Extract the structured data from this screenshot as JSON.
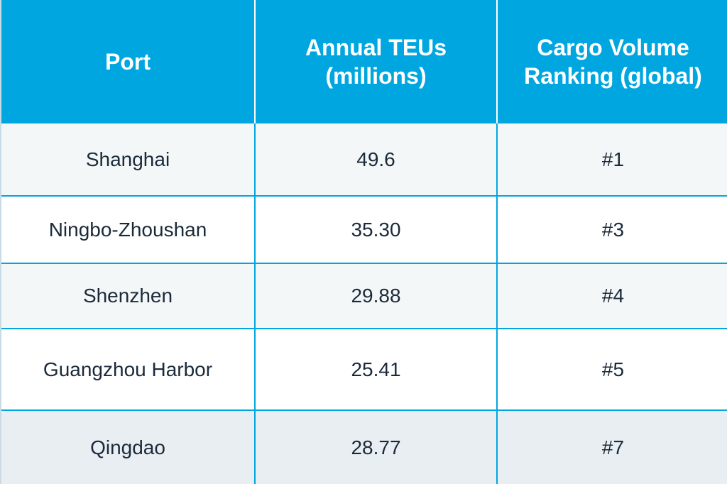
{
  "table": {
    "headers": [
      "Port",
      "Annual TEUs (millions)",
      "Cargo Volume Ranking (global)"
    ],
    "rows": [
      {
        "port": "Shanghai",
        "teus": "49.6",
        "rank": "#1"
      },
      {
        "port": "Ningbo-Zhoushan",
        "teus": "35.30",
        "rank": "#3"
      },
      {
        "port": "Shenzhen",
        "teus": "29.88",
        "rank": "#4"
      },
      {
        "port": "Guangzhou Harbor",
        "teus": "25.41",
        "rank": "#5"
      },
      {
        "port": "Qingdao",
        "teus": "28.77",
        "rank": "#7"
      }
    ]
  },
  "colors": {
    "header_bg": "#00a6e0",
    "header_text": "#ffffff",
    "body_text": "#1b2a3a",
    "row_light": "#f4f7f8",
    "row_grey": "#e9eef2"
  }
}
